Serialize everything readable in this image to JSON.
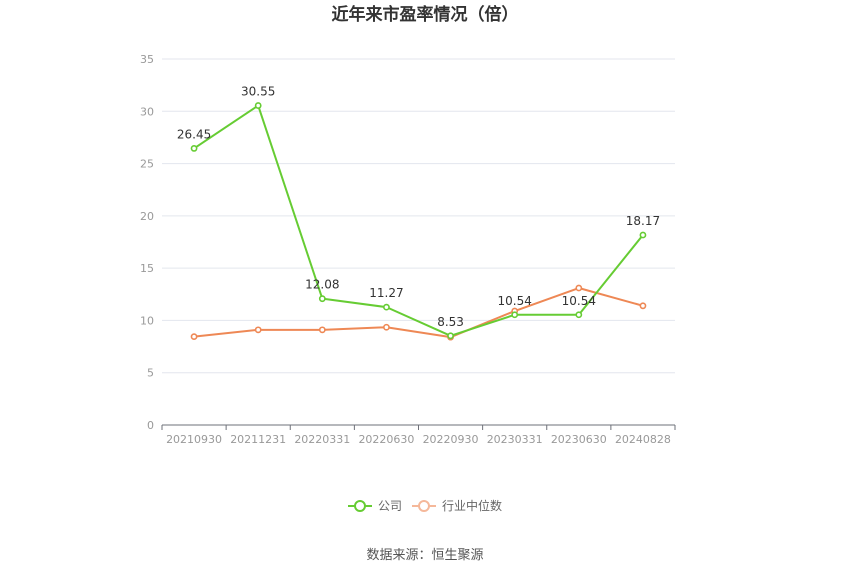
{
  "chart_data": {
    "type": "line",
    "title": "近年来市盈率情况（倍）",
    "categories": [
      "20210930",
      "20211231",
      "20220331",
      "20220630",
      "20220930",
      "20230331",
      "20230630",
      "20240828"
    ],
    "ylim": [
      0,
      35
    ],
    "yticks": [
      0,
      5,
      10,
      15,
      20,
      25,
      30,
      35
    ],
    "grid": true,
    "legend_position": "bottom",
    "series": [
      {
        "name": "公司",
        "color": "#66cc33",
        "values": [
          26.45,
          30.55,
          12.08,
          11.27,
          8.53,
          10.54,
          10.54,
          18.17
        ],
        "labels": [
          "26.45",
          "30.55",
          "12.08",
          "11.27",
          "8.53",
          "10.54",
          "10.54",
          "18.17"
        ]
      },
      {
        "name": "行业中位数",
        "color": "#ee8855",
        "values": [
          8.45,
          9.1,
          9.1,
          9.35,
          8.4,
          10.9,
          13.1,
          11.4
        ]
      }
    ]
  },
  "source": "数据来源：恒生聚源"
}
